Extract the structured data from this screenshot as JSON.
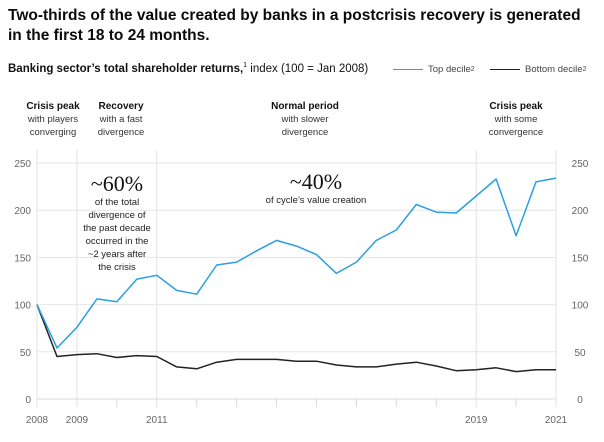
{
  "header": {
    "title": "Two-thirds of the value created by banks in a postcrisis recovery is generated in the first 18 to 24 months.",
    "subtitle_bold": "Banking sector’s total shareholder returns,",
    "subtitle_sup": "1",
    "subtitle_rest": " index (100 = Jan 2008)"
  },
  "legend": [
    {
      "label": "Top decile",
      "sup": "2",
      "color": "#2b9fe0"
    },
    {
      "label": "Bottom decile",
      "sup": "2",
      "color": "#222222"
    }
  ],
  "phases": [
    {
      "title": "Crisis peak",
      "line1": "with players",
      "line2": "converging"
    },
    {
      "title": "Recovery",
      "line1": "with a fast",
      "line2": "divergence"
    },
    {
      "title": "Normal period",
      "line1": "with slower",
      "line2": "divergence"
    },
    {
      "title": "Crisis peak",
      "line1": "with some",
      "line2": "convergence"
    }
  ],
  "annotations": {
    "recovery_big": "~60%",
    "recovery_text": [
      "of the total",
      "divergence of",
      "the past decade",
      "occurred in the",
      "~2 years after",
      "the crisis"
    ],
    "normal_big": "~40%",
    "normal_text": "of cycle’s value creation"
  },
  "chart_data": {
    "type": "line",
    "title": "Banking sector’s total shareholder returns, index (100 = Jan 2008)",
    "xlabel": "",
    "ylabel": "",
    "x": [
      2008.0,
      2008.5,
      2009.0,
      2009.5,
      2010.0,
      2010.5,
      2011.0,
      2011.5,
      2012.0,
      2012.5,
      2013.0,
      2013.5,
      2014.0,
      2014.5,
      2015.0,
      2015.5,
      2016.0,
      2016.5,
      2017.0,
      2017.5,
      2018.0,
      2018.5,
      2019.0,
      2019.5,
      2020.0,
      2020.5,
      2021.0
    ],
    "series": [
      {
        "name": "Top decile",
        "color": "#2b9fe0",
        "values": [
          100,
          54,
          76,
          106,
          103,
          127,
          131,
          115,
          111,
          142,
          145,
          157,
          168,
          162,
          153,
          133,
          145,
          168,
          179,
          206,
          198,
          197,
          215,
          233,
          173,
          230,
          234
        ]
      },
      {
        "name": "Bottom decile",
        "color": "#222222",
        "values": [
          100,
          45,
          47,
          48,
          44,
          46,
          45,
          34,
          32,
          39,
          42,
          42,
          42,
          40,
          40,
          36,
          34,
          34,
          37,
          39,
          35,
          30,
          31,
          33,
          29,
          31,
          31
        ]
      }
    ],
    "xlim": [
      2008,
      2021
    ],
    "ylim": [
      0,
      250
    ],
    "yticks": [
      0,
      50,
      100,
      150,
      200,
      250
    ],
    "xtick_labels": [
      {
        "value": 2008,
        "label": "2008"
      },
      {
        "value": 2009,
        "label": "2009"
      },
      {
        "value": 2011,
        "label": "2011"
      },
      {
        "value": 2019,
        "label": "2019"
      },
      {
        "value": 2021,
        "label": "2021"
      }
    ],
    "minor_xticks": [
      2010,
      2012,
      2013,
      2014,
      2015,
      2016,
      2017,
      2018,
      2020
    ],
    "period_dividers": [
      2008,
      2009,
      2011,
      2019,
      2021
    ],
    "grid": true,
    "legend_position": "top-right",
    "y_axis_sides": [
      "left",
      "right"
    ]
  }
}
